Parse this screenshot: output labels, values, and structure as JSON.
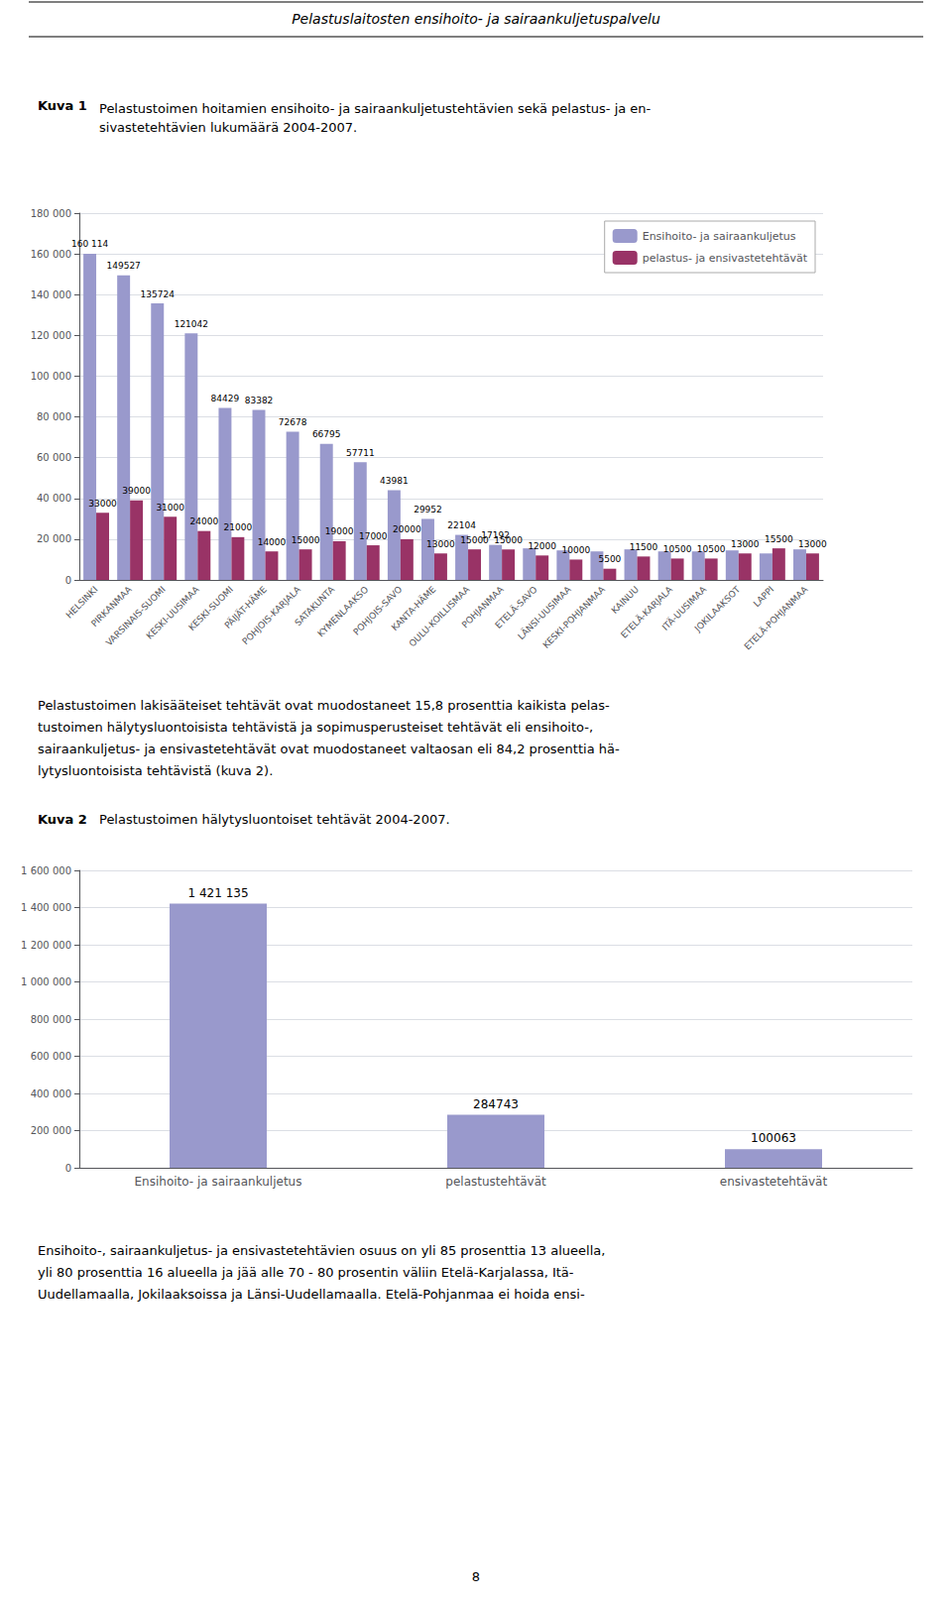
{
  "chart_data": [
    {
      "type": "bar",
      "title": "Kuva 1",
      "subtitle": "Pelastustoimen hoitamien ensihoito- ja sairaankuljetustehtävien sekä pelastus- ja en-\nsivastetehtävien lukumäärä 2004-2007.",
      "annotations": [
        "Pelastuslaitosten ensihoito- ja sairaankuljetuspalvelu",
        "Pelastustoimen lakisääteiset tehtävät ovat muodostaneet 15,8 prosenttia kaikista pelas-\ntustoimen hälytysluontoisista tehtävistä ja sopimusperusteiset tehtävät eli ensihoito-,\nsairaankuljetus- ja ensivastetehtävät ovat muodostaneet valtaosan eli 84,2 prosenttia hä-\nlytysluontoisista tehtävistä (kuva 2)."
      ],
      "categories": [
        "HELSINKI",
        "PIRKANMAA",
        "VARSINAIS-SUOMI",
        "KESKI-UUSIMAA",
        "KESKI-SUOMI",
        "PÄIJÄT-HÄME",
        "POHJOIS-KARJALA",
        "SATAKUNTA",
        "KYMENLAAKSO",
        "POHJOIS-SAVO",
        "KANTA-HÄME",
        "OULU-KOILLISMAA",
        "POHJANMAA",
        "ETELÄ-SAVO",
        "LÄNSI-UUSIMAA",
        "KESKI-POHJANMAA",
        "KAINUU",
        "ETELÄ-KARJALA",
        "ITÄ-UUSIMAA",
        "JOKILAAKSOT",
        "LAPPI",
        "ETELÄ-POHJANMAA"
      ],
      "series": [
        {
          "name": "Ensihoito- ja sairaankuljetus",
          "color": "#9999cc",
          "values": [
            160114,
            149527,
            135724,
            121042,
            84429,
            83382,
            72678,
            66795,
            57711,
            43981,
            29952,
            22104,
            17192,
            15500,
            14500,
            14000,
            15000,
            14000,
            14000,
            14500,
            13000,
            15000
          ],
          "value_labels": [
            "160 114",
            "149527",
            "135724",
            "121042",
            "84429",
            "83382",
            "72678",
            "66795",
            "57711",
            "43981",
            "29952",
            "22104",
            "17192",
            null,
            null,
            null,
            null,
            null,
            null,
            null,
            null,
            null
          ]
        },
        {
          "name": "pelastus- ja ensivastetehtävät",
          "color": "#993366",
          "values": [
            33000,
            39000,
            31000,
            24000,
            21000,
            14000,
            15000,
            19000,
            17000,
            20000,
            13000,
            15000,
            15000,
            12000,
            10000,
            5500,
            11500,
            10500,
            10500,
            13000,
            15500,
            13000
          ]
        }
      ],
      "ylim": [
        0,
        180000
      ],
      "yticks": [
        0,
        {
          "value": 20000,
          "label": "20 000"
        },
        {
          "value": 40000,
          "label": "40 000"
        },
        {
          "value": 60000,
          "label": "60 000"
        },
        {
          "value": 80000,
          "label": "80 000"
        },
        {
          "value": 100000,
          "label": "100 000"
        },
        {
          "value": 120000,
          "label": "120 000"
        },
        {
          "value": 140000,
          "label": "140 000"
        },
        {
          "value": 160000,
          "label": "160 000"
        },
        {
          "value": 180000,
          "label": "180 000"
        }
      ],
      "grid": true,
      "legend": "top-right",
      "data_labels": true
    },
    {
      "type": "bar",
      "title": "Kuva 2",
      "subtitle": "Pelastustoimen hälytysluontoiset tehtävät 2004-2007.",
      "annotations": [
        "Ensihoito-, sairaankuljetus- ja ensivastetehtävien osuus on yli 85 prosenttia 13 alueella,\nyli 80 prosenttia 16 alueella ja jää alle 70 - 80 prosentin väliin Etelä-Karjalassa, Itä-\nUudellamaalla, Jokilaaksoissa ja Länsi-Uudellamaalla. Etelä-Pohjanmaa ei hoida ensi-",
        "8"
      ],
      "categories": [
        "Ensihoito- ja sairaankuljetus",
        "pelastustehtävät",
        "ensivastetehtävät"
      ],
      "values": [
        1421135,
        284743,
        100063
      ],
      "value_labels": [
        "1 421 135",
        "284743",
        "100063"
      ],
      "color": "#9999cc",
      "ylim": [
        0,
        1600000
      ],
      "yticks": [
        0,
        {
          "value": 200000,
          "label": "200 000"
        },
        {
          "value": 400000,
          "label": "400 000"
        },
        {
          "value": 600000,
          "label": "600 000"
        },
        {
          "value": 800000,
          "label": "800 000"
        },
        {
          "value": 1000000,
          "label": "1 000 000"
        },
        {
          "value": 1200000,
          "label": "1 200 000"
        },
        {
          "value": 1400000,
          "label": "1 400 000"
        },
        {
          "value": 1600000,
          "label": "1 600 000"
        }
      ],
      "grid": true,
      "data_labels": true
    }
  ]
}
